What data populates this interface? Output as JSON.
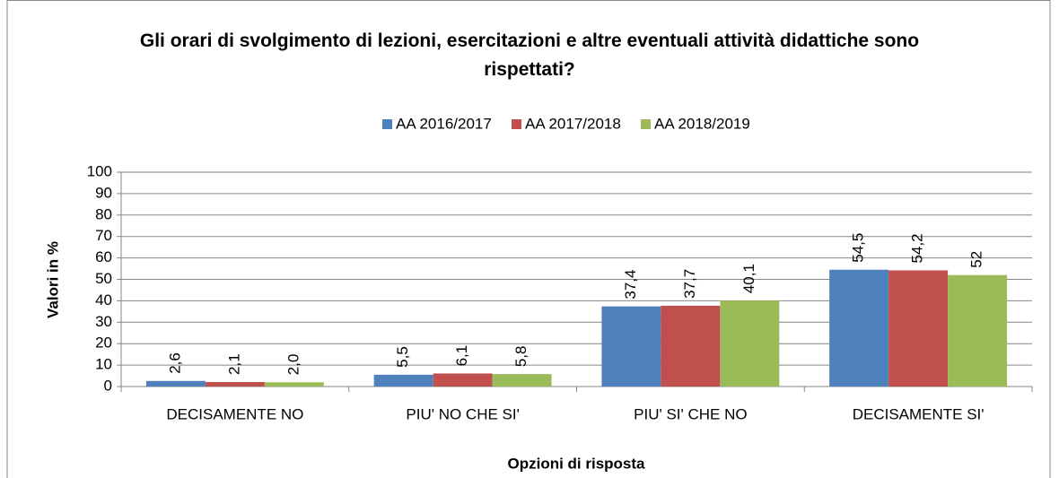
{
  "chart_data": {
    "type": "bar",
    "title": "Gli orari di svolgimento di lezioni, esercitazioni e altre eventuali attività didattiche sono rispettati?",
    "x_label": "Opzioni di risposta",
    "y_label": "Valori in %",
    "categories": [
      "DECISAMENTE NO",
      "PIU' NO CHE SI'",
      "PIU' SI' CHE NO",
      "DECISAMENTE SI'"
    ],
    "series": [
      {
        "name": "AA 2016/2017",
        "color": "#4f81bd",
        "values": [
          2.6,
          5.5,
          37.4,
          54.5
        ],
        "value_labels": [
          "2,6",
          "5,5",
          "37,4",
          "54,5"
        ]
      },
      {
        "name": "AA 2017/2018",
        "color": "#c0504d",
        "values": [
          2.1,
          6.1,
          37.7,
          54.2
        ],
        "value_labels": [
          "2,1",
          "6,1",
          "37,7",
          "54,2"
        ]
      },
      {
        "name": "AA 2018/2019",
        "color": "#9bbb59",
        "values": [
          2.0,
          5.8,
          40.1,
          52
        ],
        "value_labels": [
          "2,0",
          "5,8",
          "40,1",
          "52"
        ]
      }
    ],
    "ylim": [
      0,
      100
    ],
    "yticks": [
      0,
      10,
      20,
      30,
      40,
      50,
      60,
      70,
      80,
      90,
      100
    ],
    "grid": true,
    "legend": "top"
  }
}
